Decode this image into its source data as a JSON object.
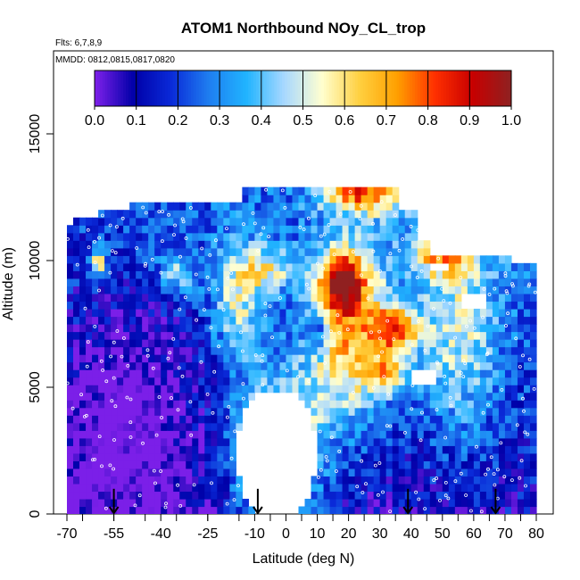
{
  "chart_data": {
    "type": "heatmap",
    "title": "ATOM1 Northbound NOy_CL_trop",
    "flights_note": "Flts: 6,7,8,9",
    "dates_note": "MMDD: 0812,0815,0817,0820",
    "xlabel": "Latitude (deg N)",
    "ylabel": "Altitude (m)",
    "xlim": [
      -70,
      80
    ],
    "ylim": [
      0,
      17500
    ],
    "x_ticks": [
      -70,
      -55,
      -40,
      -25,
      -10,
      0,
      10,
      20,
      30,
      40,
      50,
      60,
      70,
      80
    ],
    "x_tick_labels": [
      "-70",
      "-55",
      "-40",
      "-25",
      "-10",
      "0",
      "10",
      "20",
      "30",
      "40",
      "50",
      "60",
      "70",
      "80"
    ],
    "y_ticks": [
      0,
      5000,
      10000,
      15000
    ],
    "y_tick_labels": [
      "0",
      "5000",
      "10000",
      "15000"
    ],
    "colorbar": {
      "min": 0.0,
      "max": 1.0,
      "ticks": [
        0.0,
        0.1,
        0.2,
        0.3,
        0.4,
        0.5,
        0.6,
        0.7,
        0.8,
        0.9,
        1.0
      ],
      "tick_labels": [
        "0.0",
        "0.1",
        "0.2",
        "0.3",
        "0.4",
        "0.5",
        "0.6",
        "0.7",
        "0.8",
        "0.9",
        "1.0"
      ],
      "colors": [
        "#7b1fe8",
        "#0000a8",
        "#0a2ad8",
        "#1f7ef0",
        "#20b4ff",
        "#a8d8ff",
        "#ffffd0",
        "#ffd040",
        "#ffa000",
        "#ff3000",
        "#c80000",
        "#902020"
      ]
    },
    "profile_markers_lat": [
      -55,
      -9,
      39,
      67
    ],
    "grid": false,
    "legend": "colorbar top-inside"
  }
}
